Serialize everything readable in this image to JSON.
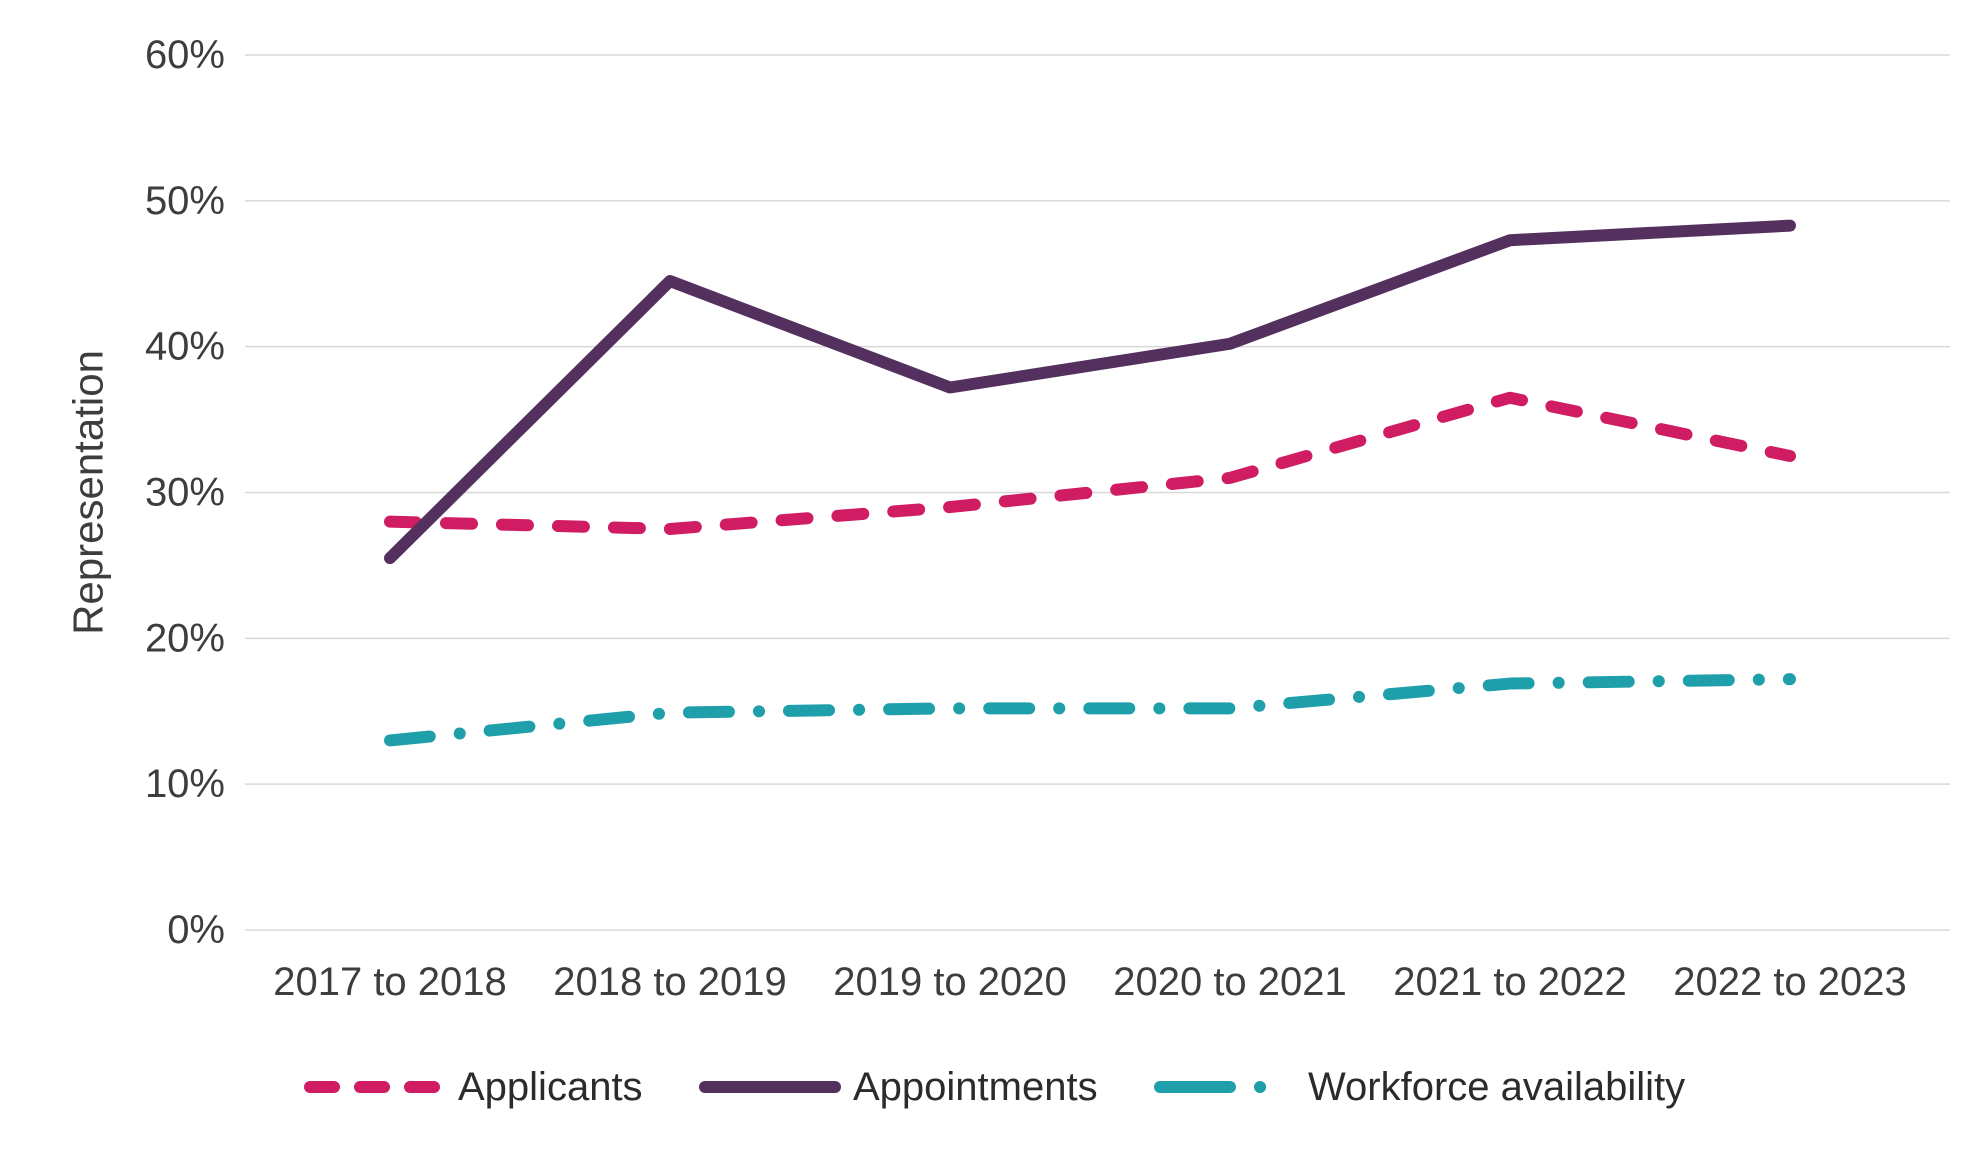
{
  "chart_data": {
    "type": "line",
    "title": "",
    "xlabel": "",
    "ylabel": "Representation",
    "ylim": [
      0,
      60
    ],
    "grid": true,
    "legend_position": "bottom",
    "y_tick_values": [
      0,
      10,
      20,
      30,
      40,
      50,
      60
    ],
    "y_tick_labels": [
      "0%",
      "10%",
      "20%",
      "30%",
      "40%",
      "50%",
      "60%"
    ],
    "categories": [
      "2017 to 2018",
      "2018 to 2019",
      "2019 to 2020",
      "2020 to 2021",
      "2021 to 2022",
      "2022 to 2023"
    ],
    "series": [
      {
        "name": "Applicants",
        "color": "#d01c63",
        "style": "dashed",
        "values": [
          28,
          27.5,
          29,
          31,
          36.5,
          32.5
        ]
      },
      {
        "name": "Appointments",
        "color": "#53305e",
        "style": "solid",
        "values": [
          25.5,
          44.5,
          37.2,
          40.2,
          47.3,
          48.3
        ]
      },
      {
        "name": "Workforce availability",
        "color": "#1e9faa",
        "style": "dash-dot",
        "values": [
          13,
          14.9,
          15.2,
          15.2,
          16.9,
          17.2
        ]
      }
    ]
  },
  "colors": {
    "grid": "#d8d8d8",
    "text": "#3d3d3d",
    "background": "#ffffff"
  }
}
